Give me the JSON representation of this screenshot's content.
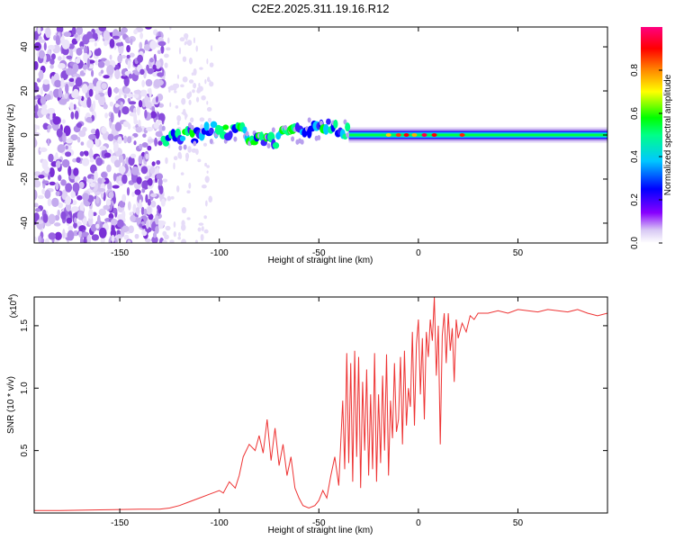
{
  "title": "C2E2.2025.311.19.16.R12",
  "spectrogram": {
    "type": "heatmap",
    "xlabel": "Height of straight line (km)",
    "ylabel": "Frequency (Hz)",
    "xlim": [
      -193,
      95
    ],
    "ylim": [
      -49,
      49
    ],
    "xticks": [
      -150,
      -100,
      -50,
      0,
      50
    ],
    "yticks": [
      40,
      20,
      0,
      -20,
      -40
    ],
    "colorbar": {
      "label": "Normalized spectral amplitude",
      "range": [
        0,
        1
      ],
      "ticks": [
        0.0,
        0.2,
        0.4,
        0.6,
        0.8
      ],
      "tick_labels": [
        "0.0",
        "0.2",
        "0.4",
        "0.6",
        "0.8"
      ],
      "colors": [
        "#ffffff",
        "#c9b8f0",
        "#8800ff",
        "#0000ff",
        "#00c8ff",
        "#00ff00",
        "#ffff00",
        "#ff8800",
        "#ff0000",
        "#ff0080"
      ]
    },
    "description_regions": [
      {
        "x_range": [
          -193,
          -128
        ],
        "freq_range": [
          -49,
          49
        ],
        "amplitude": 0.05,
        "pattern": "broadband noise"
      },
      {
        "x_range": [
          -128,
          -35
        ],
        "center_freq": 0,
        "width_hz": 14,
        "amplitude": 0.45,
        "pattern": "wavy ridge"
      },
      {
        "x_range": [
          -35,
          95
        ],
        "center_freq": 0,
        "width_hz": 6,
        "amplitude": 0.55,
        "pattern": "steady ridge"
      }
    ]
  },
  "chart_data": {
    "type": "line",
    "title": "",
    "xlabel": "Height of straight line (km)",
    "ylabel": "SNR (10 * v/v)",
    "multiplier_label": "(x10",
    "multiplier_exp": "4",
    "multiplier_close": ")",
    "xlim": [
      -193,
      95
    ],
    "ylim": [
      0,
      1.73
    ],
    "xticks": [
      -150,
      -100,
      -50,
      0,
      50
    ],
    "yticks": [
      0.5,
      1.0,
      1.5
    ],
    "ytick_labels": [
      "0.5",
      "1.0",
      "1.5"
    ],
    "color": "#ee3333",
    "series": [
      {
        "name": "SNR",
        "x": [
          -193,
          -180,
          -160,
          -140,
          -130,
          -125,
          -120,
          -115,
          -110,
          -105,
          -100,
          -98,
          -95,
          -92,
          -90,
          -88,
          -85,
          -82,
          -80,
          -78,
          -76,
          -74,
          -72,
          -70,
          -68,
          -66,
          -64,
          -62,
          -60,
          -58,
          -55,
          -52,
          -50,
          -48,
          -46,
          -44,
          -42,
          -40,
          -38,
          -37,
          -36,
          -35,
          -34,
          -33,
          -32,
          -31,
          -30,
          -29,
          -28,
          -27,
          -26,
          -25,
          -24,
          -23,
          -22,
          -21,
          -20,
          -19,
          -18,
          -17,
          -16,
          -15,
          -14,
          -13,
          -12,
          -11,
          -10,
          -9,
          -8,
          -7,
          -6,
          -5,
          -4,
          -3,
          -2,
          -1,
          0,
          1,
          2,
          3,
          4,
          5,
          6,
          7,
          8,
          9,
          10,
          11,
          12,
          13,
          14,
          15,
          16,
          17,
          18,
          19,
          20,
          22,
          24,
          26,
          28,
          30,
          35,
          40,
          45,
          50,
          55,
          60,
          65,
          70,
          75,
          80,
          85,
          90,
          95
        ],
        "values": [
          0.02,
          0.02,
          0.025,
          0.03,
          0.03,
          0.04,
          0.06,
          0.09,
          0.12,
          0.15,
          0.18,
          0.16,
          0.25,
          0.2,
          0.3,
          0.45,
          0.55,
          0.5,
          0.62,
          0.48,
          0.75,
          0.42,
          0.68,
          0.38,
          0.55,
          0.3,
          0.45,
          0.2,
          0.12,
          0.06,
          0.04,
          0.06,
          0.1,
          0.18,
          0.12,
          0.3,
          0.45,
          0.22,
          0.9,
          0.35,
          1.28,
          0.4,
          1.2,
          0.25,
          1.3,
          0.45,
          1.25,
          0.2,
          1.05,
          0.5,
          1.15,
          0.3,
          0.95,
          0.35,
          1.28,
          0.25,
          0.95,
          0.4,
          1.1,
          0.5,
          1.27,
          0.3,
          0.9,
          0.6,
          1.2,
          0.65,
          0.75,
          1.25,
          0.55,
          1.3,
          0.7,
          1.0,
          0.85,
          1.45,
          0.7,
          1.35,
          1.55,
          0.95,
          1.4,
          0.75,
          1.45,
          1.25,
          1.55,
          1.38,
          1.73,
          1.1,
          1.5,
          0.55,
          1.42,
          1.6,
          1.2,
          1.6,
          1.3,
          1.48,
          1.05,
          1.55,
          1.4,
          1.52,
          1.45,
          1.58,
          1.55,
          1.6,
          1.6,
          1.62,
          1.6,
          1.63,
          1.62,
          1.61,
          1.63,
          1.62,
          1.61,
          1.63,
          1.6,
          1.58,
          1.6
        ]
      }
    ]
  }
}
